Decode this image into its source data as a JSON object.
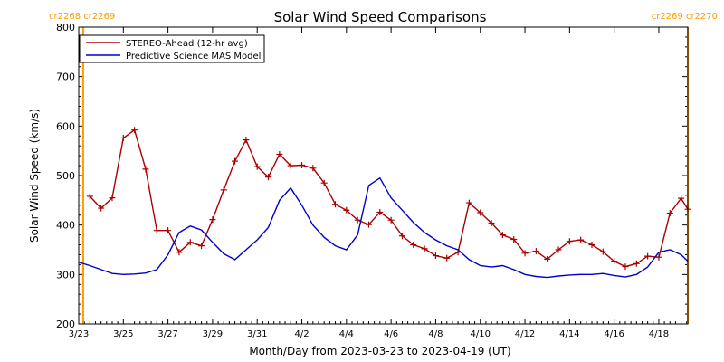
{
  "chart_data": {
    "type": "line",
    "title": "Solar Wind Speed Comparisons",
    "xlabel": "Month/Day from 2023-03-23 to 2023-04-19 (UT)",
    "ylabel": "Solar Wind Speed (km/s)",
    "ylim": [
      200,
      800
    ],
    "xlim_days": [
      0,
      27.3
    ],
    "yticks": [
      200,
      300,
      400,
      500,
      600,
      700,
      800
    ],
    "xticks": [
      {
        "day": 0,
        "label": "3/23"
      },
      {
        "day": 2,
        "label": "3/25"
      },
      {
        "day": 4,
        "label": "3/27"
      },
      {
        "day": 6,
        "label": "3/29"
      },
      {
        "day": 8,
        "label": "3/31"
      },
      {
        "day": 10,
        "label": "4/2"
      },
      {
        "day": 12,
        "label": "4/4"
      },
      {
        "day": 14,
        "label": "4/6"
      },
      {
        "day": 16,
        "label": "4/8"
      },
      {
        "day": 18,
        "label": "4/10"
      },
      {
        "day": 20,
        "label": "4/12"
      },
      {
        "day": 22,
        "label": "4/14"
      },
      {
        "day": 24,
        "label": "4/16"
      },
      {
        "day": 26,
        "label": "4/18"
      }
    ],
    "legend_position": "top-left",
    "rotation_markers": [
      {
        "day": 0.2,
        "left_label": "cr2268",
        "right_label": "cr2269",
        "color": "#ff9900",
        "side": "left"
      },
      {
        "day": 27.3,
        "left_label": "cr2269",
        "right_label": "cr2270",
        "color": "#ff9900",
        "side": "right"
      }
    ],
    "series": [
      {
        "name": "STEREO-Ahead (12-hr avg)",
        "color": "#aa0000",
        "marker": "plus",
        "x": [
          0.5,
          1.0,
          1.5,
          2.0,
          2.5,
          3.0,
          3.5,
          4.0,
          4.5,
          5.0,
          5.5,
          6.0,
          6.5,
          7.0,
          7.5,
          8.0,
          8.5,
          9.0,
          9.5,
          10.0,
          10.5,
          11.0,
          11.5,
          12.0,
          12.5,
          13.0,
          13.5,
          14.0,
          14.5,
          15.0,
          15.5,
          16.0,
          16.5,
          17.0,
          17.5,
          18.0,
          18.5,
          19.0,
          19.5,
          20.0,
          20.5,
          21.0,
          21.5,
          22.0,
          22.5,
          23.0,
          23.5,
          24.0,
          24.5,
          25.0,
          25.5,
          26.0,
          26.5,
          27.0,
          27.3
        ],
        "y": [
          458,
          434,
          455,
          576,
          592,
          513,
          389,
          389,
          345,
          365,
          358,
          411,
          471,
          529,
          572,
          518,
          497,
          543,
          520,
          521,
          515,
          485,
          442,
          430,
          410,
          401,
          426,
          410,
          378,
          360,
          352,
          338,
          333,
          345,
          445,
          425,
          404,
          380,
          371,
          343,
          347,
          331,
          350,
          367,
          370,
          360,
          346,
          327,
          316,
          322,
          337,
          335,
          424,
          454,
          432
        ]
      },
      {
        "name": "Predictive Science MAS Model",
        "color": "#0000cc",
        "marker": "none",
        "x": [
          0,
          0.5,
          1.0,
          1.5,
          2.0,
          2.5,
          3.0,
          3.5,
          4.0,
          4.5,
          5.0,
          5.5,
          6.0,
          6.5,
          7.0,
          7.5,
          8.0,
          8.5,
          9.0,
          9.5,
          10.0,
          10.5,
          11.0,
          11.5,
          12.0,
          12.5,
          13.0,
          13.5,
          14.0,
          14.5,
          15.0,
          15.5,
          16.0,
          16.5,
          17.0,
          17.5,
          18.0,
          18.5,
          19.0,
          19.5,
          20.0,
          20.5,
          21.0,
          21.5,
          22.0,
          22.5,
          23.0,
          23.5,
          24.0,
          24.5,
          25.0,
          25.5,
          26.0,
          26.5,
          27.0,
          27.3
        ],
        "y": [
          325,
          318,
          310,
          302,
          300,
          301,
          303,
          310,
          340,
          385,
          398,
          390,
          365,
          342,
          330,
          350,
          370,
          395,
          450,
          475,
          440,
          400,
          375,
          358,
          350,
          380,
          480,
          495,
          455,
          430,
          405,
          385,
          370,
          358,
          350,
          330,
          318,
          315,
          318,
          310,
          300,
          296,
          294,
          297,
          299,
          300,
          300,
          302,
          298,
          295,
          300,
          315,
          345,
          350,
          340,
          327
        ]
      }
    ]
  }
}
